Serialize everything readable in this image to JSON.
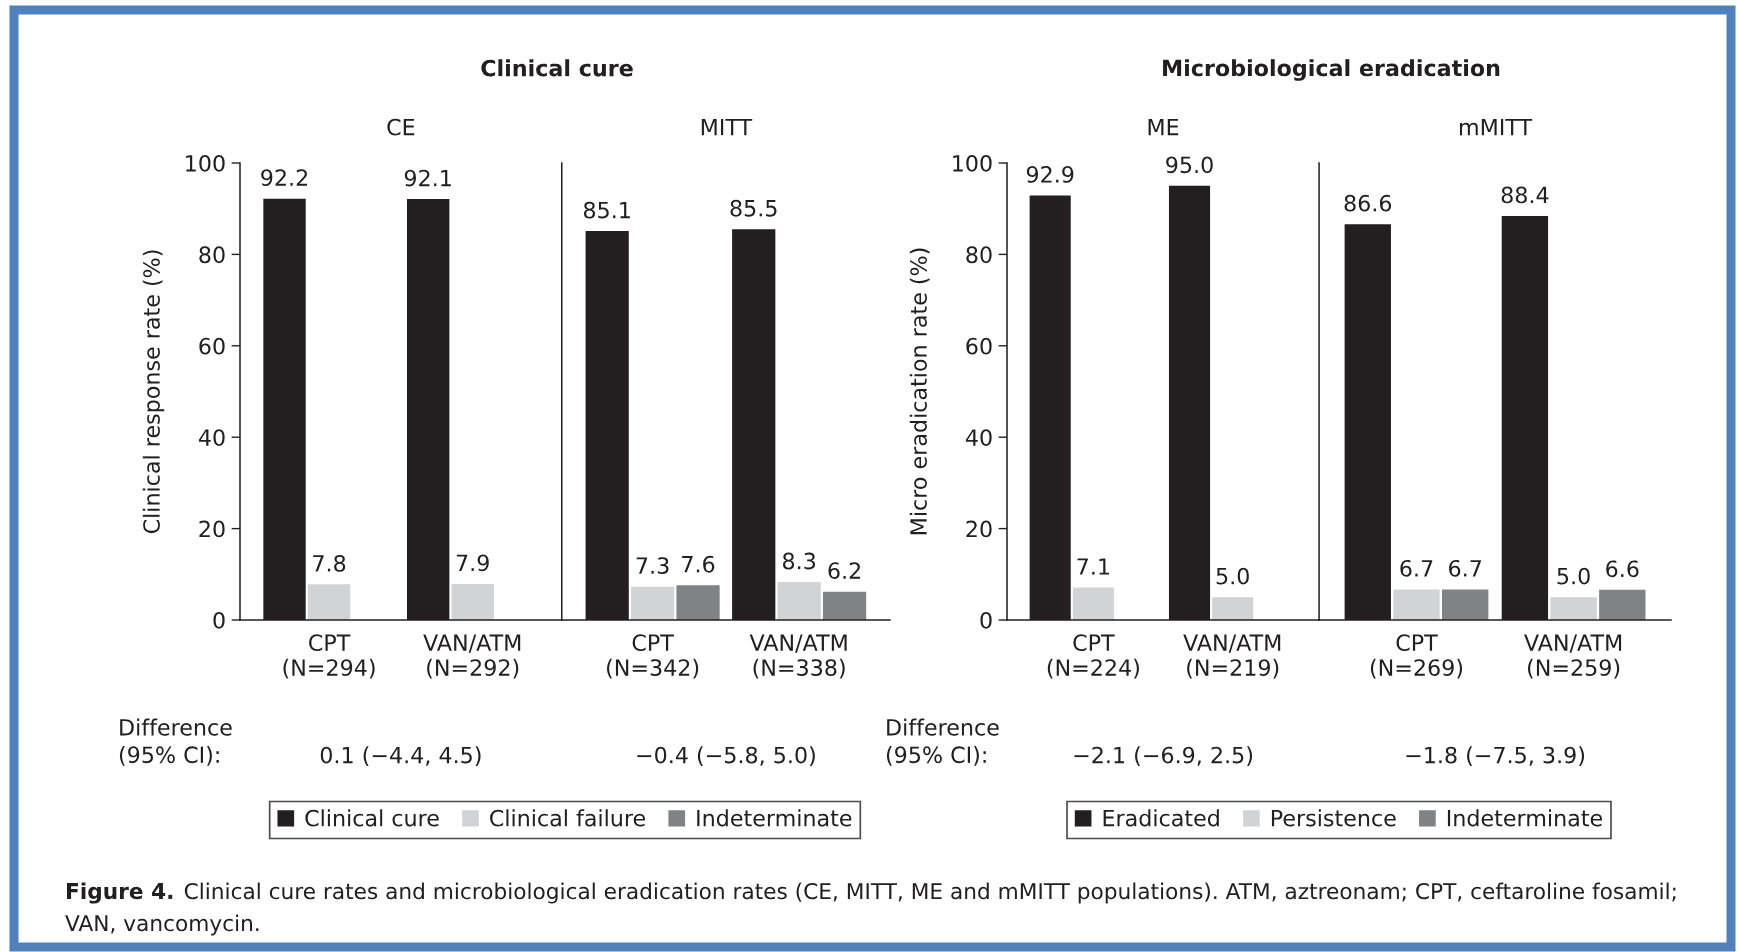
{
  "chart_data": [
    {
      "type": "bar",
      "title": "Clinical cure",
      "subtitle": "CE",
      "ylabel": "Clinical response rate (%)",
      "categories": [
        "CPT\n(N=294)",
        "VAN/ATM\n(N=292)"
      ],
      "series": [
        {
          "color": "#231f20",
          "values": [
            92.2,
            92.1
          ],
          "value_labels": [
            "92.2",
            "92.1"
          ]
        },
        {
          "color": "#d1d3d4",
          "values": [
            7.8,
            7.9
          ],
          "value_labels": [
            "7.8",
            "7.9"
          ]
        }
      ],
      "ylim": [
        0,
        100
      ],
      "yticks": [
        0,
        20,
        40,
        60,
        80,
        100
      ],
      "annotations": [
        "0.1 (−4.4, 4.5)",
        "Difference\n(95% CI):",
        "Figure 4.",
        "Clinical cure rates and microbiological eradication rates (CE, MITT, ME and mMITT populations). ATM, aztreonam; CPT, ceftaroline fosamil;",
        "VAN, vancomycin."
      ]
    },
    {
      "type": "bar",
      "subtitle": "MITT",
      "categories": [
        "CPT\n(N=342)",
        "VAN/ATM\n(N=338)"
      ],
      "series": [
        {
          "name": "Clinical cure",
          "color": "#231f20",
          "values": [
            85.1,
            85.5
          ],
          "value_labels": [
            "85.1",
            "85.5"
          ]
        },
        {
          "name": "Clinical failure",
          "color": "#d1d3d4",
          "values": [
            7.3,
            8.3
          ],
          "value_labels": [
            "7.3",
            "8.3"
          ]
        },
        {
          "name": "Indeterminate",
          "color": "#808285",
          "values": [
            7.6,
            6.2
          ],
          "value_labels": [
            "7.6",
            "6.2"
          ]
        }
      ],
      "ylim": [
        0,
        100
      ],
      "tick_labels": "x",
      "legend": "bottom",
      "annotations": [
        "−0.4 (−5.8, 5.0)"
      ]
    },
    {
      "type": "bar",
      "title": "Microbiological eradication",
      "subtitle": "ME",
      "ylabel": "Micro eradication rate (%)",
      "categories": [
        "CPT\n(N=224)",
        "VAN/ATM\n(N=219)"
      ],
      "series": [
        {
          "color": "#231f20",
          "values": [
            92.9,
            95.0
          ],
          "value_labels": [
            "92.9",
            "95.0"
          ]
        },
        {
          "color": "#d1d3d4",
          "values": [
            7.1,
            5.0
          ],
          "value_labels": [
            "7.1",
            "5.0"
          ]
        }
      ],
      "ylim": [
        0,
        100
      ],
      "yticks": [
        0,
        20,
        40,
        60,
        80,
        100
      ],
      "annotations": [
        "−2.1 (−6.9, 2.5)",
        "Difference\n(95% CI):"
      ]
    },
    {
      "type": "bar",
      "subtitle": "mMITT",
      "categories": [
        "CPT\n(N=269)",
        "VAN/ATM\n(N=259)"
      ],
      "series": [
        {
          "name": "Eradicated",
          "color": "#231f20",
          "values": [
            86.6,
            88.4
          ],
          "value_labels": [
            "86.6",
            "88.4"
          ]
        },
        {
          "name": "Persistence",
          "color": "#d1d3d4",
          "values": [
            6.7,
            5.0
          ],
          "value_labels": [
            "6.7",
            "5.0"
          ]
        },
        {
          "name": "Indeterminate",
          "color": "#808285",
          "values": [
            6.7,
            6.6
          ],
          "value_labels": [
            "6.7",
            "6.6"
          ]
        }
      ],
      "ylim": [
        0,
        100
      ],
      "tick_labels": "x",
      "legend": "bottom",
      "annotations": [
        "−1.8 (−7.5, 3.9)"
      ]
    }
  ]
}
